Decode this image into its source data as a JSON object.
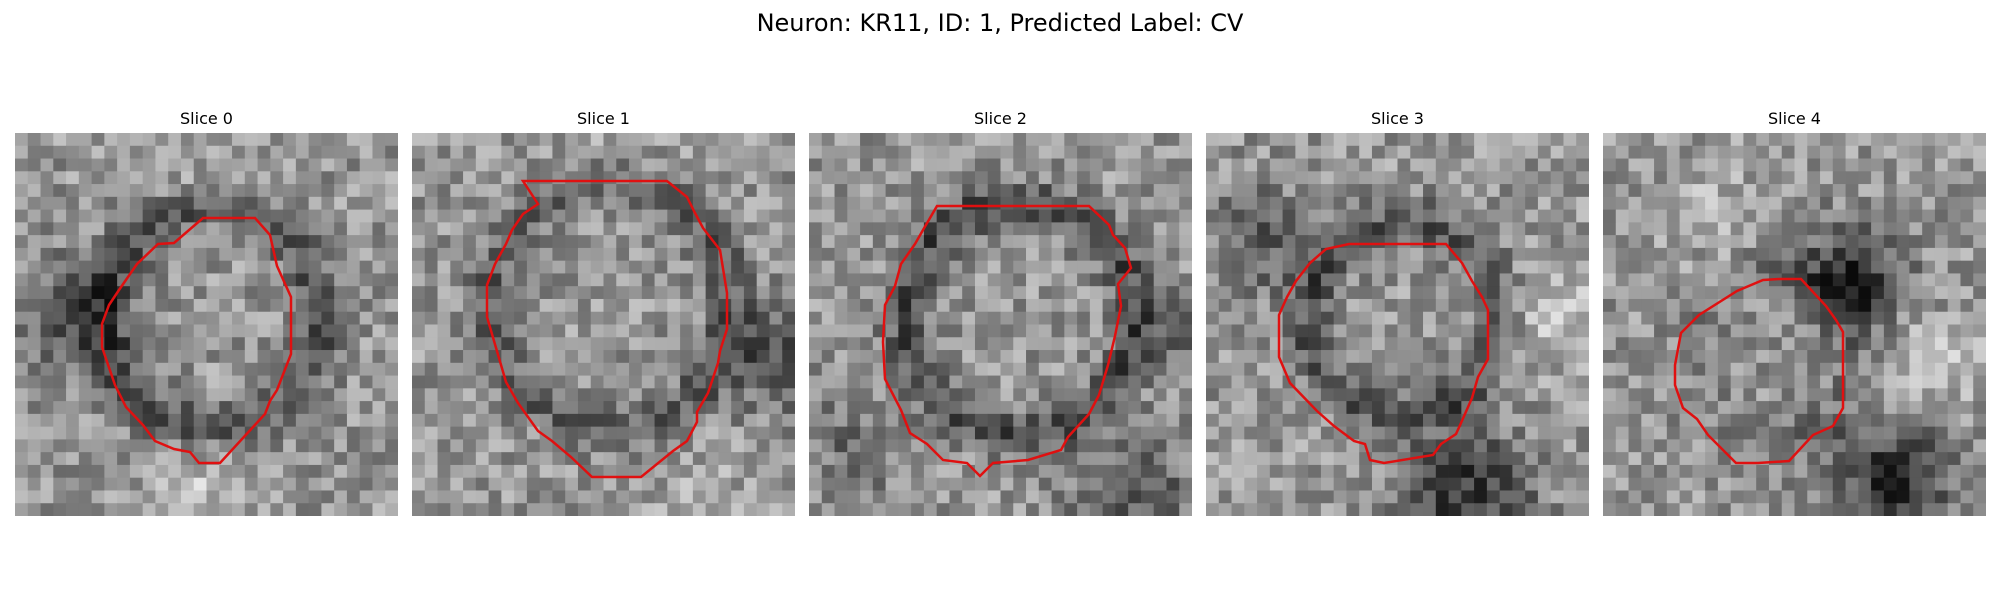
{
  "figure": {
    "suptitle": "Neuron: KR11, ID: 1, Predicted Label: CV",
    "contour_color": "#e01010",
    "panels": [
      {
        "title": "Slice 0",
        "image": "grayscale cell micrograph slice"
      },
      {
        "title": "Slice 1",
        "image": "grayscale cell micrograph slice"
      },
      {
        "title": "Slice 2",
        "image": "grayscale cell micrograph slice"
      },
      {
        "title": "Slice 3",
        "image": "grayscale cell micrograph slice"
      },
      {
        "title": "Slice 4",
        "image": "grayscale cell micrograph slice"
      }
    ]
  }
}
